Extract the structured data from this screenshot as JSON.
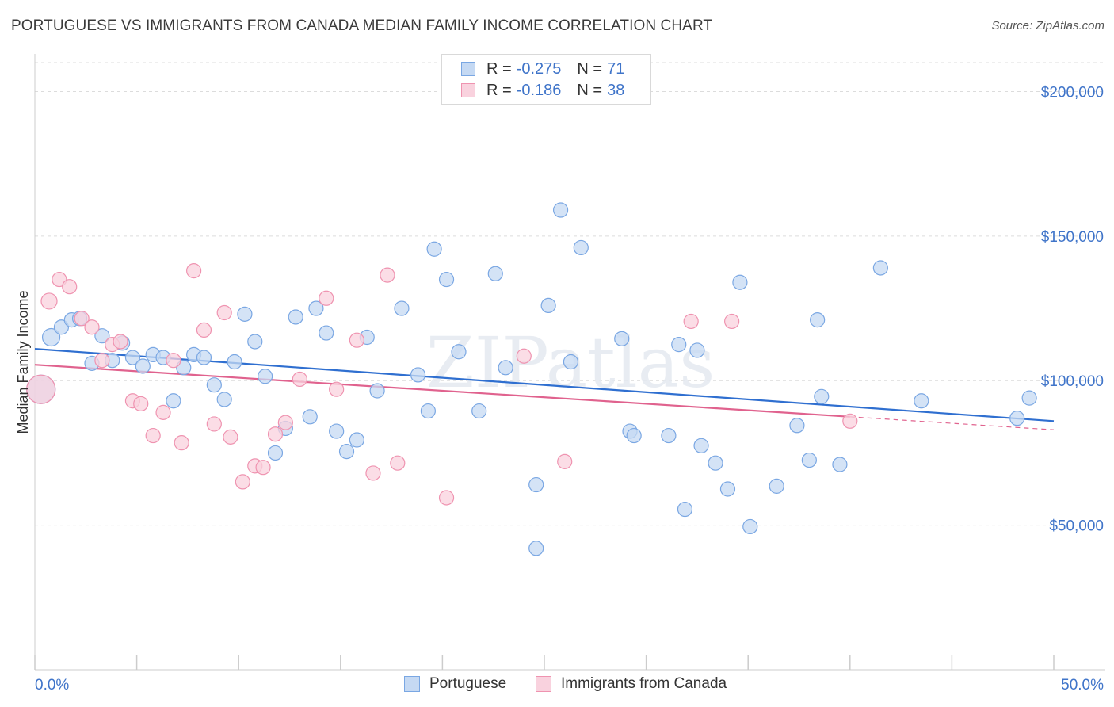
{
  "title": "PORTUGUESE VS IMMIGRANTS FROM CANADA MEDIAN FAMILY INCOME CORRELATION CHART",
  "source": "Source: ZipAtlas.com",
  "watermark": "ZIPatlas",
  "legend": [
    {
      "r_label": "R =",
      "r_value": "-0.275",
      "n_label": "N =",
      "n_value": "71",
      "color": "#a9c8ef"
    },
    {
      "r_label": "R =",
      "r_value": "-0.186",
      "n_label": "N =",
      "n_value": "38",
      "color": "#f5b4c8"
    }
  ],
  "bottom_legend": [
    "Portuguese",
    "Immigrants from Canada"
  ],
  "chart_data": {
    "type": "scatter",
    "xlabel": "",
    "ylabel": "Median Family Income",
    "x_tick_labels": [
      "0.0%",
      "50.0%"
    ],
    "y_tick_labels": [
      "$50,000",
      "$100,000",
      "$150,000",
      "$200,000"
    ],
    "xlim": [
      0,
      50
    ],
    "ylim": [
      0,
      210000
    ],
    "y_ticks": [
      50000,
      100000,
      150000,
      200000
    ],
    "grid": true,
    "series": [
      {
        "name": "Portuguese",
        "color": "#7aa7e3",
        "fill": "#c5d9f3",
        "trend": {
          "x0": 0,
          "y0": 111000,
          "x1": 50,
          "y1": 86000,
          "color": "#2f6fd0"
        },
        "points": [
          [
            0.3,
            97000,
            18
          ],
          [
            0.8,
            115000,
            11
          ],
          [
            1.3,
            118500,
            9
          ],
          [
            1.8,
            121000,
            9
          ],
          [
            2.2,
            121500,
            9
          ],
          [
            2.8,
            106000,
            9
          ],
          [
            3.3,
            115500,
            9
          ],
          [
            3.8,
            107000,
            9
          ],
          [
            4.3,
            113000,
            9
          ],
          [
            4.8,
            108000,
            9
          ],
          [
            5.3,
            105000,
            9
          ],
          [
            5.8,
            109000,
            9
          ],
          [
            6.3,
            108000,
            9
          ],
          [
            6.8,
            93000,
            9
          ],
          [
            7.3,
            104500,
            9
          ],
          [
            7.8,
            109000,
            9
          ],
          [
            8.3,
            108000,
            9
          ],
          [
            8.8,
            98500,
            9
          ],
          [
            9.3,
            93500,
            9
          ],
          [
            9.8,
            106500,
            9
          ],
          [
            10.3,
            123000,
            9
          ],
          [
            10.8,
            113500,
            9
          ],
          [
            11.3,
            101500,
            9
          ],
          [
            11.8,
            75000,
            9
          ],
          [
            12.3,
            83500,
            9
          ],
          [
            12.8,
            122000,
            9
          ],
          [
            13.5,
            87500,
            9
          ],
          [
            13.8,
            125000,
            9
          ],
          [
            14.3,
            116500,
            9
          ],
          [
            14.8,
            82500,
            9
          ],
          [
            15.3,
            75500,
            9
          ],
          [
            15.8,
            79500,
            9
          ],
          [
            16.3,
            115000,
            9
          ],
          [
            16.8,
            96500,
            9
          ],
          [
            18.0,
            125000,
            9
          ],
          [
            18.8,
            102000,
            9
          ],
          [
            19.3,
            89500,
            9
          ],
          [
            19.6,
            145500,
            9
          ],
          [
            20.2,
            135000,
            9
          ],
          [
            20.8,
            110000,
            9
          ],
          [
            21.8,
            89500,
            9
          ],
          [
            22.6,
            137000,
            9
          ],
          [
            23.1,
            104500,
            9
          ],
          [
            24.6,
            64000,
            9
          ],
          [
            24.6,
            42000,
            9
          ],
          [
            25.2,
            126000,
            9
          ],
          [
            25.8,
            159000,
            9
          ],
          [
            26.3,
            106500,
            9
          ],
          [
            26.8,
            146000,
            9
          ],
          [
            28.8,
            114500,
            9
          ],
          [
            29.2,
            82500,
            9
          ],
          [
            29.4,
            81000,
            9
          ],
          [
            31.1,
            81000,
            9
          ],
          [
            31.6,
            112500,
            9
          ],
          [
            31.9,
            55500,
            9
          ],
          [
            32.5,
            110500,
            9
          ],
          [
            32.7,
            77500,
            9
          ],
          [
            33.4,
            71500,
            9
          ],
          [
            34.0,
            62500,
            9
          ],
          [
            34.6,
            134000,
            9
          ],
          [
            35.1,
            49500,
            9
          ],
          [
            36.4,
            63500,
            9
          ],
          [
            37.4,
            84500,
            9
          ],
          [
            38.0,
            72500,
            9
          ],
          [
            38.4,
            121000,
            9
          ],
          [
            38.6,
            94500,
            9
          ],
          [
            39.5,
            71000,
            9
          ],
          [
            41.5,
            139000,
            9
          ],
          [
            43.5,
            93000,
            9
          ],
          [
            48.2,
            87000,
            9
          ],
          [
            48.8,
            94000,
            9
          ]
        ]
      },
      {
        "name": "Immigrants from Canada",
        "color": "#ef93b0",
        "fill": "#f9d2de",
        "trend": {
          "x0": 0,
          "y0": 105500,
          "x1": 40,
          "y1": 87500,
          "dash_to_x": 50,
          "dash_to_y": 83000,
          "color": "#e0628e"
        },
        "points": [
          [
            0.3,
            97000,
            18
          ],
          [
            0.7,
            127500,
            10
          ],
          [
            1.2,
            135000,
            9
          ],
          [
            1.7,
            132500,
            9
          ],
          [
            2.3,
            121500,
            9
          ],
          [
            2.8,
            118500,
            9
          ],
          [
            3.3,
            107000,
            9
          ],
          [
            3.8,
            112500,
            9
          ],
          [
            4.2,
            113500,
            9
          ],
          [
            4.8,
            93000,
            9
          ],
          [
            5.2,
            92000,
            9
          ],
          [
            5.8,
            81000,
            9
          ],
          [
            6.3,
            89000,
            9
          ],
          [
            6.8,
            107000,
            9
          ],
          [
            7.2,
            78500,
            9
          ],
          [
            7.8,
            138000,
            9
          ],
          [
            8.3,
            117500,
            9
          ],
          [
            8.8,
            85000,
            9
          ],
          [
            9.3,
            123500,
            9
          ],
          [
            9.6,
            80500,
            9
          ],
          [
            10.2,
            65000,
            9
          ],
          [
            10.8,
            70500,
            9
          ],
          [
            11.2,
            70000,
            9
          ],
          [
            11.8,
            81500,
            9
          ],
          [
            12.3,
            85500,
            9
          ],
          [
            13.0,
            100500,
            9
          ],
          [
            14.3,
            128500,
            9
          ],
          [
            14.8,
            97000,
            9
          ],
          [
            15.8,
            114000,
            9
          ],
          [
            16.6,
            68000,
            9
          ],
          [
            17.3,
            136500,
            9
          ],
          [
            17.8,
            71500,
            9
          ],
          [
            20.2,
            59500,
            9
          ],
          [
            24.0,
            108500,
            9
          ],
          [
            26.0,
            72000,
            9
          ],
          [
            32.2,
            120500,
            9
          ],
          [
            34.2,
            120500,
            9
          ],
          [
            40.0,
            86000,
            9
          ]
        ]
      }
    ]
  }
}
